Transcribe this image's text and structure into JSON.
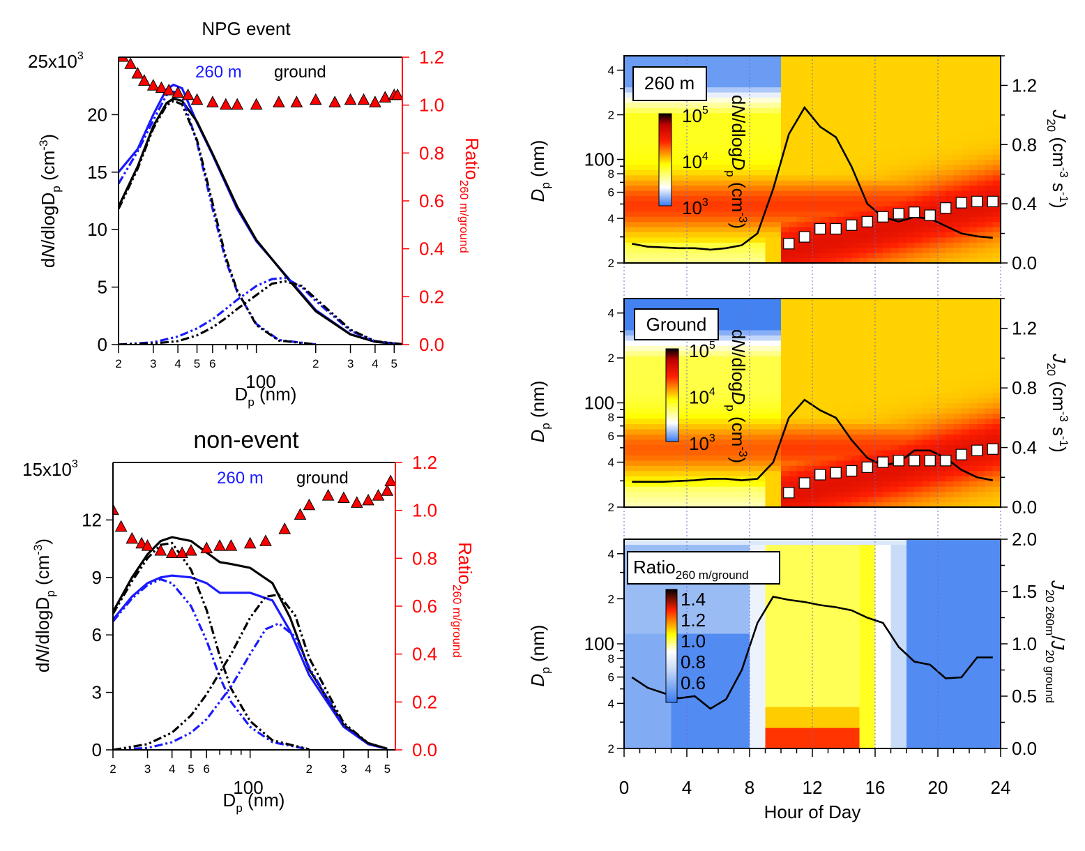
{
  "colors": {
    "ground": "#000000",
    "m260": "#1a1aff",
    "ratio": "#ff0000",
    "heat_blue": "#3a7bf0"
  },
  "top_left": {
    "title": "NPG event",
    "ylabel": "dN/dlogDp (cm-3)",
    "y_exp_label": "25x10",
    "y_exp": "3",
    "yticks": [
      "0",
      "5",
      "10",
      "15",
      "20"
    ],
    "ratio_label": "Ratio",
    "ratio_sub": "260 m/ground",
    "ratio_ticks": [
      "0.0",
      "0.2",
      "0.4",
      "0.6",
      "0.8",
      "1.0",
      "1.2"
    ],
    "legend_260": "260 m",
    "legend_ground": "ground",
    "xlabel": "Dp (nm)",
    "xticks_minor_labels": [
      "2",
      "3",
      "4",
      "5",
      "6",
      "2",
      "3",
      "4",
      "5"
    ],
    "xtick_100": "100"
  },
  "bottom_left": {
    "title": "non-event",
    "ylabel": "dN/dlogDp (cm-3)",
    "y_exp_label": "15x10",
    "y_exp": "3",
    "yticks": [
      "0",
      "3",
      "6",
      "9",
      "12"
    ],
    "ratio_label": "Ratio",
    "ratio_sub": "260 m/ground",
    "ratio_ticks": [
      "0.0",
      "0.2",
      "0.4",
      "0.6",
      "0.8",
      "1.0",
      "1.2"
    ],
    "legend_260": "260 m",
    "legend_ground": "ground",
    "xlabel": "Dp (nm)",
    "xticks_minor_labels": [
      "2",
      "3",
      "4",
      "5",
      "6",
      "2",
      "3",
      "4",
      "5"
    ],
    "xtick_100": "100"
  },
  "right": {
    "panel1_label": "260 m",
    "panel2_label": "Ground",
    "panel3_label": "Ratio",
    "panel3_label_sub": "260 m/ground",
    "dp_label": "Dp (nm)",
    "dp_ticks": [
      "2",
      "4",
      "6",
      "8",
      "100",
      "2",
      "4"
    ],
    "cb_title": "dN/dlogDp (cm-3)",
    "cb_ticks": [
      "10",
      "10",
      "10"
    ],
    "cb_exps": [
      "5",
      "4",
      "3"
    ],
    "ratio_cb_ticks": [
      "1.4",
      "1.2",
      "1.0",
      "0.8",
      "0.6"
    ],
    "j20_label": "J20 (cm-3 s-1)",
    "j20_ticks": [
      "0.0",
      "0.4",
      "0.8",
      "1.2"
    ],
    "j20_ratio_label": "J20 260m/J20 ground",
    "j20_ratio_ticks": [
      "0.0",
      "0.5",
      "1.0",
      "1.5",
      "2.0"
    ],
    "xticks": [
      "0",
      "4",
      "8",
      "12",
      "16",
      "20",
      "24"
    ],
    "xlabel": "Hour of Day"
  },
  "chart_data": [
    {
      "type": "line",
      "title": "NPG event",
      "xlabel": "Dp (nm)",
      "ylabel": "dN/dlogDp (cm-3)",
      "x_scale": "log",
      "xlim": [
        20,
        550
      ],
      "ylim": [
        0,
        25000
      ],
      "y2label": "Ratio 260 m/ground",
      "y2lim": [
        0,
        1.2
      ],
      "legend": "top",
      "series": [
        {
          "name": "260 m",
          "style": "solid",
          "x": [
            20,
            25,
            30,
            35,
            38,
            42,
            50,
            60,
            80,
            100,
            150,
            200,
            300,
            400,
            500
          ],
          "values": [
            15000,
            17000,
            20000,
            22200,
            22600,
            22300,
            19300,
            16500,
            11800,
            9000,
            5500,
            3000,
            900,
            250,
            80
          ]
        },
        {
          "name": "ground",
          "style": "solid",
          "x": [
            20,
            25,
            30,
            35,
            38,
            42,
            50,
            60,
            80,
            100,
            150,
            200,
            300,
            400,
            500
          ],
          "values": [
            12000,
            15500,
            19000,
            21000,
            21400,
            21200,
            19400,
            16600,
            12000,
            9100,
            5400,
            2900,
            880,
            250,
            80
          ]
        },
        {
          "name": "",
          "style": "dash-dot",
          "x": [
            20,
            25,
            30,
            35,
            38,
            42,
            50,
            60,
            70,
            80,
            100,
            130,
            200
          ],
          "values": [
            14000,
            16800,
            19500,
            21700,
            22000,
            21600,
            17600,
            11800,
            7300,
            4600,
            1800,
            400,
            20
          ]
        },
        {
          "name": "",
          "style": "dash-dot",
          "x": [
            20,
            25,
            30,
            35,
            38,
            42,
            50,
            60,
            70,
            80,
            100,
            130,
            200
          ],
          "values": [
            11800,
            15300,
            18800,
            20800,
            21200,
            20900,
            17800,
            12300,
            7600,
            4700,
            1700,
            350,
            20
          ]
        },
        {
          "name": "",
          "style": "dash-dot",
          "x": [
            20,
            30,
            40,
            50,
            60,
            70,
            80,
            100,
            120,
            140,
            170,
            200,
            300,
            400,
            550
          ],
          "values": [
            0,
            200,
            700,
            1400,
            2200,
            3100,
            3900,
            5100,
            5700,
            5800,
            5000,
            3800,
            1200,
            300,
            30
          ]
        },
        {
          "name": "",
          "style": "dash-dot",
          "x": [
            20,
            30,
            40,
            50,
            60,
            70,
            80,
            100,
            120,
            140,
            170,
            200,
            300,
            400,
            550
          ],
          "values": [
            0,
            100,
            300,
            800,
            1500,
            2300,
            3100,
            4300,
            5300,
            5500,
            5100,
            4000,
            1300,
            300,
            30
          ]
        },
        {
          "name": "Ratio 260 m/ground",
          "style": "markers",
          "axis": "y2",
          "x": [
            21,
            23,
            25,
            27,
            30,
            33,
            36,
            40,
            45,
            50,
            60,
            70,
            80,
            100,
            130,
            160,
            200,
            250,
            300,
            350,
            400,
            450,
            500,
            520
          ],
          "values": [
            1.2,
            1.17,
            1.13,
            1.1,
            1.08,
            1.07,
            1.06,
            1.05,
            1.04,
            1.02,
            1.01,
            1.0,
            1.0,
            1.0,
            1.01,
            1.01,
            1.02,
            1.01,
            1.02,
            1.02,
            1.01,
            1.03,
            1.04,
            1.04
          ]
        }
      ]
    },
    {
      "type": "line",
      "title": "non-event",
      "xlabel": "Dp (nm)",
      "ylabel": "dN/dlogDp (cm-3)",
      "x_scale": "log",
      "xlim": [
        20,
        550
      ],
      "ylim": [
        0,
        15000
      ],
      "y2label": "Ratio 260 m/ground",
      "y2lim": [
        0,
        1.2
      ],
      "legend": "top",
      "series": [
        {
          "name": "260 m",
          "style": "solid",
          "x": [
            20,
            25,
            30,
            35,
            40,
            50,
            60,
            70,
            80,
            100,
            130,
            160,
            200,
            300,
            400,
            500
          ],
          "values": [
            6800,
            8000,
            8700,
            9000,
            9100,
            9000,
            8700,
            8200,
            8200,
            8200,
            7800,
            6200,
            3900,
            1200,
            300,
            50
          ]
        },
        {
          "name": "ground",
          "style": "solid",
          "x": [
            20,
            25,
            30,
            35,
            40,
            50,
            60,
            70,
            80,
            100,
            130,
            160,
            200,
            300,
            400,
            500
          ],
          "values": [
            7200,
            9000,
            10200,
            10900,
            11100,
            10900,
            10300,
            9800,
            9700,
            9500,
            8700,
            6900,
            4200,
            1300,
            350,
            60
          ]
        },
        {
          "name": "",
          "style": "dash-dot",
          "x": [
            20,
            25,
            30,
            35,
            40,
            50,
            60,
            70,
            80,
            100,
            130,
            200
          ],
          "values": [
            6700,
            7900,
            8600,
            8900,
            8700,
            7500,
            5700,
            3800,
            2500,
            1200,
            400,
            20
          ]
        },
        {
          "name": "",
          "style": "dash-dot",
          "x": [
            20,
            25,
            30,
            35,
            40,
            50,
            60,
            70,
            80,
            100,
            130,
            200
          ],
          "values": [
            7100,
            8800,
            10000,
            10700,
            10800,
            9400,
            7300,
            4900,
            3200,
            1500,
            500,
            30
          ]
        },
        {
          "name": "",
          "style": "dash-dot",
          "x": [
            20,
            30,
            40,
            50,
            60,
            80,
            100,
            120,
            140,
            170,
            200,
            300,
            400,
            500
          ],
          "values": [
            0,
            100,
            400,
            900,
            1600,
            3300,
            5000,
            6300,
            6600,
            5900,
            4300,
            1300,
            300,
            50
          ]
        },
        {
          "name": "",
          "style": "dash-dot",
          "x": [
            20,
            30,
            40,
            50,
            60,
            80,
            100,
            120,
            140,
            170,
            200,
            300,
            400,
            500
          ],
          "values": [
            0,
            300,
            900,
            1800,
            2900,
            5000,
            6900,
            8000,
            8100,
            7000,
            4800,
            1400,
            350,
            60
          ]
        },
        {
          "name": "Ratio 260 m/ground",
          "style": "markers",
          "axis": "y2",
          "x": [
            20,
            22,
            25,
            28,
            30,
            35,
            40,
            45,
            50,
            60,
            70,
            80,
            100,
            120,
            150,
            180,
            200,
            250,
            300,
            350,
            400,
            450,
            500,
            520
          ],
          "values": [
            1.0,
            0.93,
            0.88,
            0.86,
            0.85,
            0.83,
            0.82,
            0.82,
            0.83,
            0.84,
            0.85,
            0.85,
            0.86,
            0.87,
            0.92,
            0.98,
            1.02,
            1.06,
            1.05,
            1.03,
            1.04,
            1.06,
            1.08,
            1.12
          ]
        }
      ]
    },
    {
      "type": "heatmap",
      "title": "260 m",
      "xlabel": "Hour of Day",
      "ylabel": "Dp (nm)",
      "xlim": [
        0,
        24
      ],
      "ylim": [
        20,
        500
      ],
      "y_scale": "log",
      "colorbar": "dN/dlogDp (cm-3), 10^3 - 10^5",
      "y2label": "J20 (cm-3 s-1)",
      "y2lim": [
        0,
        1.4
      ],
      "J20_line": {
        "x": [
          0.5,
          1.5,
          2.5,
          3.5,
          4.5,
          5.5,
          6.5,
          7.5,
          8.5,
          9.5,
          10.5,
          11.5,
          12.5,
          13.5,
          14.5,
          15.5,
          16.5,
          17.5,
          18.5,
          19.5,
          20.5,
          21.5,
          22.5,
          23.5
        ],
        "values": [
          0.13,
          0.11,
          0.105,
          0.1,
          0.1,
          0.09,
          0.1,
          0.12,
          0.2,
          0.5,
          0.87,
          1.05,
          0.92,
          0.85,
          0.65,
          0.4,
          0.31,
          0.28,
          0.31,
          0.3,
          0.25,
          0.2,
          0.18,
          0.17
        ]
      },
      "growth_markers": {
        "x": [
          10.5,
          11.5,
          12.5,
          13.5,
          14.5,
          15.5,
          16.5,
          17.5,
          18.5,
          19.5,
          20.5,
          21.5,
          22.5,
          23.5
        ],
        "values": [
          27,
          30,
          34,
          34,
          36,
          38,
          41,
          43,
          44,
          42,
          47,
          51,
          52,
          52
        ]
      }
    },
    {
      "type": "heatmap",
      "title": "Ground",
      "xlabel": "Hour of Day",
      "ylabel": "Dp (nm)",
      "xlim": [
        0,
        24
      ],
      "ylim": [
        20,
        500
      ],
      "y_scale": "log",
      "colorbar": "dN/dlogDp (cm-3), 10^3 - 10^5",
      "y2label": "J20 (cm-3 s-1)",
      "y2lim": [
        0,
        1.4
      ],
      "J20_line": {
        "x": [
          0.5,
          1.5,
          2.5,
          3.5,
          4.5,
          5.5,
          6.5,
          7.5,
          8.5,
          9.5,
          10.5,
          11.5,
          12.5,
          13.5,
          14.5,
          15.5,
          16.5,
          17.5,
          18.5,
          19.5,
          20.5,
          21.5,
          22.5,
          23.5
        ],
        "values": [
          0.17,
          0.17,
          0.17,
          0.175,
          0.18,
          0.19,
          0.19,
          0.18,
          0.19,
          0.3,
          0.6,
          0.72,
          0.65,
          0.6,
          0.45,
          0.33,
          0.28,
          0.3,
          0.38,
          0.38,
          0.33,
          0.25,
          0.2,
          0.18
        ]
      },
      "growth_markers": {
        "x": [
          10.5,
          11.5,
          12.5,
          13.5,
          14.5,
          15.5,
          16.5,
          17.5,
          18.5,
          19.5,
          20.5,
          21.5,
          22.5,
          23.5
        ],
        "values": [
          25,
          29,
          33,
          34,
          35,
          37,
          40,
          41,
          41,
          41,
          41,
          45,
          48,
          49
        ]
      }
    },
    {
      "type": "heatmap",
      "title": "Ratio 260 m/ground",
      "xlabel": "Hour of Day",
      "ylabel": "Dp (nm)",
      "xlim": [
        0,
        24
      ],
      "ylim": [
        20,
        500
      ],
      "y_scale": "log",
      "colorbar": "Ratio 0.6 - 1.4",
      "y2label": "J20 260m/J20 ground",
      "y2lim": [
        0,
        2.0
      ],
      "J20_ratio_line": {
        "x": [
          0.5,
          1.5,
          2.5,
          3.5,
          4.5,
          5.5,
          6.5,
          7.5,
          8.5,
          9.5,
          10.5,
          11.5,
          12.5,
          13.5,
          14.5,
          15.5,
          16.5,
          17.5,
          18.5,
          19.5,
          20.5,
          21.5,
          22.5,
          23.5
        ],
        "values": [
          0.68,
          0.58,
          0.53,
          0.48,
          0.5,
          0.38,
          0.47,
          0.75,
          1.2,
          1.45,
          1.42,
          1.4,
          1.37,
          1.35,
          1.32,
          1.25,
          1.2,
          0.97,
          0.83,
          0.8,
          0.67,
          0.68,
          0.87,
          0.87
        ]
      }
    }
  ]
}
